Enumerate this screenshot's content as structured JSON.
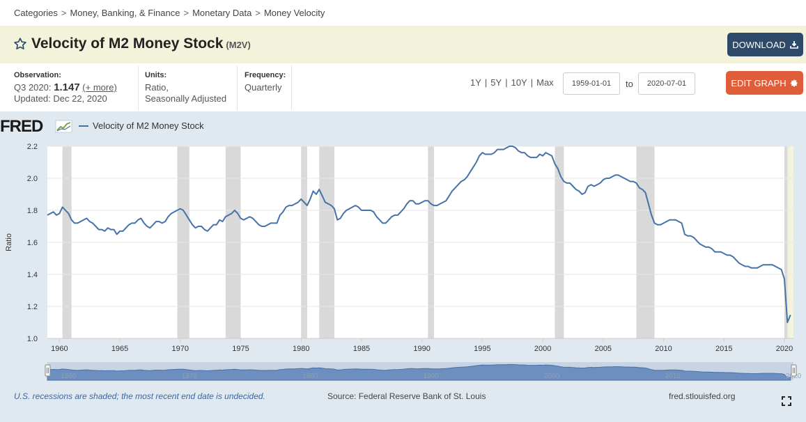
{
  "breadcrumb": {
    "items": [
      "Categories",
      "Money, Banking, & Finance",
      "Monetary Data",
      "Money Velocity"
    ],
    "separator": ">"
  },
  "header": {
    "title": "Velocity of M2 Money Stock",
    "code": "(M2V)",
    "download_label": "DOWNLOAD",
    "star_icon": "star-outline-icon",
    "download_icon": "download-icon"
  },
  "meta": {
    "observation_label": "Observation:",
    "observation_period": "Q3 2020:",
    "observation_value": "1.147",
    "observation_more": "(+ more)",
    "updated": "Updated: Dec 22, 2020",
    "units_label": "Units:",
    "units_line1": "Ratio,",
    "units_line2": "Seasonally Adjusted",
    "frequency_label": "Frequency:",
    "frequency_value": "Quarterly"
  },
  "controls": {
    "ranges": [
      "1Y",
      "5Y",
      "10Y",
      "Max"
    ],
    "start_date": "1959-01-01",
    "to_label": "to",
    "end_date": "2020-07-01",
    "edit_label": "EDIT GRAPH",
    "edit_icon": "gear-icon"
  },
  "footer": {
    "note": "U.S. recessions are shaded; the most recent end date is undecided.",
    "source": "Source: Federal Reserve Bank of St. Louis",
    "site": "fred.stlouisfed.org"
  },
  "colors": {
    "line": "#4572a7",
    "recession": "#d9d9d9",
    "download_btn": "#2d4a6b",
    "edit_btn": "#e05d3a",
    "title_band": "#f3f3dc"
  },
  "chart_data": {
    "type": "line",
    "title": "Velocity of M2 Money Stock",
    "logo_text": "FRED",
    "legend": [
      "Velocity of M2 Money Stock"
    ],
    "xlabel": "",
    "ylabel": "Ratio",
    "xlim": [
      1959.0,
      2020.75
    ],
    "ylim": [
      1.0,
      2.2
    ],
    "yticks": [
      1.0,
      1.2,
      1.4,
      1.6,
      1.8,
      2.0,
      2.2
    ],
    "xticks": [
      1960,
      1965,
      1970,
      1975,
      1980,
      1985,
      1990,
      1995,
      2000,
      2005,
      2010,
      2015,
      2020
    ],
    "nav_labels": [
      "1960",
      "1970",
      "1980",
      "1990",
      "2000",
      "2010",
      "2020"
    ],
    "recessions": [
      [
        1960.25,
        1961.0
      ],
      [
        1969.75,
        1970.75
      ],
      [
        1973.75,
        1975.0
      ],
      [
        1980.0,
        1980.5
      ],
      [
        1981.5,
        1982.75
      ],
      [
        1990.5,
        1991.0
      ],
      [
        2001.0,
        2001.75
      ],
      [
        2007.75,
        2009.25
      ],
      [
        2020.0,
        2020.5
      ]
    ],
    "series": [
      {
        "name": "Velocity of M2 Money Stock",
        "points": [
          [
            1959.0,
            1.77
          ],
          [
            1959.5,
            1.79
          ],
          [
            1959.75,
            1.77
          ],
          [
            1960.0,
            1.78
          ],
          [
            1960.25,
            1.82
          ],
          [
            1960.5,
            1.8
          ],
          [
            1960.75,
            1.78
          ],
          [
            1961.0,
            1.74
          ],
          [
            1961.25,
            1.72
          ],
          [
            1961.5,
            1.72
          ],
          [
            1961.75,
            1.73
          ],
          [
            1962.0,
            1.74
          ],
          [
            1962.25,
            1.75
          ],
          [
            1962.5,
            1.73
          ],
          [
            1962.75,
            1.72
          ],
          [
            1963.0,
            1.7
          ],
          [
            1963.25,
            1.68
          ],
          [
            1963.5,
            1.68
          ],
          [
            1963.75,
            1.67
          ],
          [
            1964.0,
            1.69
          ],
          [
            1964.25,
            1.68
          ],
          [
            1964.5,
            1.68
          ],
          [
            1964.75,
            1.65
          ],
          [
            1965.0,
            1.67
          ],
          [
            1965.25,
            1.67
          ],
          [
            1965.5,
            1.69
          ],
          [
            1965.75,
            1.71
          ],
          [
            1966.0,
            1.72
          ],
          [
            1966.25,
            1.72
          ],
          [
            1966.5,
            1.74
          ],
          [
            1966.75,
            1.75
          ],
          [
            1967.0,
            1.72
          ],
          [
            1967.25,
            1.7
          ],
          [
            1967.5,
            1.69
          ],
          [
            1967.75,
            1.71
          ],
          [
            1968.0,
            1.73
          ],
          [
            1968.25,
            1.73
          ],
          [
            1968.5,
            1.72
          ],
          [
            1968.75,
            1.73
          ],
          [
            1969.0,
            1.76
          ],
          [
            1969.25,
            1.78
          ],
          [
            1969.5,
            1.79
          ],
          [
            1969.75,
            1.8
          ],
          [
            1970.0,
            1.81
          ],
          [
            1970.25,
            1.8
          ],
          [
            1970.5,
            1.77
          ],
          [
            1970.75,
            1.74
          ],
          [
            1971.0,
            1.71
          ],
          [
            1971.25,
            1.69
          ],
          [
            1971.5,
            1.7
          ],
          [
            1971.75,
            1.7
          ],
          [
            1972.0,
            1.68
          ],
          [
            1972.25,
            1.67
          ],
          [
            1972.5,
            1.69
          ],
          [
            1972.75,
            1.71
          ],
          [
            1973.0,
            1.71
          ],
          [
            1973.25,
            1.74
          ],
          [
            1973.5,
            1.73
          ],
          [
            1973.75,
            1.76
          ],
          [
            1974.0,
            1.77
          ],
          [
            1974.25,
            1.78
          ],
          [
            1974.5,
            1.8
          ],
          [
            1974.75,
            1.78
          ],
          [
            1975.0,
            1.75
          ],
          [
            1975.25,
            1.74
          ],
          [
            1975.5,
            1.75
          ],
          [
            1975.75,
            1.76
          ],
          [
            1976.0,
            1.75
          ],
          [
            1976.25,
            1.73
          ],
          [
            1976.5,
            1.71
          ],
          [
            1976.75,
            1.7
          ],
          [
            1977.0,
            1.7
          ],
          [
            1977.25,
            1.71
          ],
          [
            1977.5,
            1.72
          ],
          [
            1977.75,
            1.72
          ],
          [
            1978.0,
            1.72
          ],
          [
            1978.25,
            1.77
          ],
          [
            1978.5,
            1.79
          ],
          [
            1978.75,
            1.82
          ],
          [
            1979.0,
            1.83
          ],
          [
            1979.25,
            1.83
          ],
          [
            1979.5,
            1.84
          ],
          [
            1979.75,
            1.85
          ],
          [
            1980.0,
            1.87
          ],
          [
            1980.25,
            1.85
          ],
          [
            1980.5,
            1.83
          ],
          [
            1980.75,
            1.87
          ],
          [
            1981.0,
            1.92
          ],
          [
            1981.25,
            1.9
          ],
          [
            1981.5,
            1.93
          ],
          [
            1981.75,
            1.89
          ],
          [
            1982.0,
            1.85
          ],
          [
            1982.25,
            1.84
          ],
          [
            1982.5,
            1.83
          ],
          [
            1982.75,
            1.81
          ],
          [
            1983.0,
            1.74
          ],
          [
            1983.25,
            1.75
          ],
          [
            1983.5,
            1.78
          ],
          [
            1983.75,
            1.8
          ],
          [
            1984.0,
            1.81
          ],
          [
            1984.25,
            1.82
          ],
          [
            1984.5,
            1.83
          ],
          [
            1984.75,
            1.82
          ],
          [
            1985.0,
            1.8
          ],
          [
            1985.25,
            1.8
          ],
          [
            1985.5,
            1.8
          ],
          [
            1985.75,
            1.8
          ],
          [
            1986.0,
            1.79
          ],
          [
            1986.25,
            1.76
          ],
          [
            1986.5,
            1.74
          ],
          [
            1986.75,
            1.72
          ],
          [
            1987.0,
            1.72
          ],
          [
            1987.25,
            1.74
          ],
          [
            1987.5,
            1.76
          ],
          [
            1987.75,
            1.77
          ],
          [
            1988.0,
            1.77
          ],
          [
            1988.25,
            1.79
          ],
          [
            1988.5,
            1.81
          ],
          [
            1988.75,
            1.84
          ],
          [
            1989.0,
            1.86
          ],
          [
            1989.25,
            1.86
          ],
          [
            1989.5,
            1.84
          ],
          [
            1989.75,
            1.84
          ],
          [
            1990.0,
            1.85
          ],
          [
            1990.25,
            1.86
          ],
          [
            1990.5,
            1.86
          ],
          [
            1990.75,
            1.84
          ],
          [
            1991.0,
            1.83
          ],
          [
            1991.25,
            1.83
          ],
          [
            1991.5,
            1.84
          ],
          [
            1991.75,
            1.85
          ],
          [
            1992.0,
            1.86
          ],
          [
            1992.25,
            1.89
          ],
          [
            1992.5,
            1.92
          ],
          [
            1992.75,
            1.94
          ],
          [
            1993.0,
            1.96
          ],
          [
            1993.25,
            1.98
          ],
          [
            1993.5,
            1.99
          ],
          [
            1993.75,
            2.01
          ],
          [
            1994.0,
            2.04
          ],
          [
            1994.25,
            2.07
          ],
          [
            1994.5,
            2.1
          ],
          [
            1994.75,
            2.14
          ],
          [
            1995.0,
            2.16
          ],
          [
            1995.25,
            2.15
          ],
          [
            1995.5,
            2.15
          ],
          [
            1995.75,
            2.15
          ],
          [
            1996.0,
            2.16
          ],
          [
            1996.25,
            2.18
          ],
          [
            1996.5,
            2.18
          ],
          [
            1996.75,
            2.18
          ],
          [
            1997.0,
            2.19
          ],
          [
            1997.25,
            2.2
          ],
          [
            1997.5,
            2.2
          ],
          [
            1997.75,
            2.19
          ],
          [
            1998.0,
            2.17
          ],
          [
            1998.25,
            2.16
          ],
          [
            1998.5,
            2.16
          ],
          [
            1998.75,
            2.14
          ],
          [
            1999.0,
            2.13
          ],
          [
            1999.25,
            2.13
          ],
          [
            1999.5,
            2.13
          ],
          [
            1999.75,
            2.15
          ],
          [
            2000.0,
            2.14
          ],
          [
            2000.25,
            2.16
          ],
          [
            2000.5,
            2.15
          ],
          [
            2000.75,
            2.14
          ],
          [
            2001.0,
            2.09
          ],
          [
            2001.25,
            2.06
          ],
          [
            2001.5,
            2.01
          ],
          [
            2001.75,
            1.98
          ],
          [
            2002.0,
            1.97
          ],
          [
            2002.25,
            1.97
          ],
          [
            2002.5,
            1.95
          ],
          [
            2002.75,
            1.93
          ],
          [
            2003.0,
            1.92
          ],
          [
            2003.25,
            1.9
          ],
          [
            2003.5,
            1.91
          ],
          [
            2003.75,
            1.95
          ],
          [
            2004.0,
            1.96
          ],
          [
            2004.25,
            1.95
          ],
          [
            2004.5,
            1.96
          ],
          [
            2004.75,
            1.97
          ],
          [
            2005.0,
            1.99
          ],
          [
            2005.25,
            2.0
          ],
          [
            2005.5,
            2.0
          ],
          [
            2005.75,
            2.01
          ],
          [
            2006.0,
            2.02
          ],
          [
            2006.25,
            2.02
          ],
          [
            2006.5,
            2.01
          ],
          [
            2006.75,
            2.0
          ],
          [
            2007.0,
            1.99
          ],
          [
            2007.25,
            1.98
          ],
          [
            2007.5,
            1.98
          ],
          [
            2007.75,
            1.97
          ],
          [
            2008.0,
            1.94
          ],
          [
            2008.25,
            1.93
          ],
          [
            2008.5,
            1.91
          ],
          [
            2008.75,
            1.84
          ],
          [
            2009.0,
            1.77
          ],
          [
            2009.25,
            1.72
          ],
          [
            2009.5,
            1.71
          ],
          [
            2009.75,
            1.71
          ],
          [
            2010.0,
            1.72
          ],
          [
            2010.25,
            1.73
          ],
          [
            2010.5,
            1.74
          ],
          [
            2010.75,
            1.74
          ],
          [
            2011.0,
            1.74
          ],
          [
            2011.25,
            1.73
          ],
          [
            2011.5,
            1.72
          ],
          [
            2011.75,
            1.65
          ],
          [
            2012.0,
            1.64
          ],
          [
            2012.25,
            1.64
          ],
          [
            2012.5,
            1.63
          ],
          [
            2012.75,
            1.61
          ],
          [
            2013.0,
            1.59
          ],
          [
            2013.25,
            1.58
          ],
          [
            2013.5,
            1.57
          ],
          [
            2013.75,
            1.57
          ],
          [
            2014.0,
            1.56
          ],
          [
            2014.25,
            1.54
          ],
          [
            2014.5,
            1.54
          ],
          [
            2014.75,
            1.54
          ],
          [
            2015.0,
            1.53
          ],
          [
            2015.25,
            1.52
          ],
          [
            2015.5,
            1.52
          ],
          [
            2015.75,
            1.51
          ],
          [
            2016.0,
            1.49
          ],
          [
            2016.25,
            1.47
          ],
          [
            2016.5,
            1.46
          ],
          [
            2016.75,
            1.45
          ],
          [
            2017.0,
            1.45
          ],
          [
            2017.25,
            1.44
          ],
          [
            2017.5,
            1.44
          ],
          [
            2017.75,
            1.44
          ],
          [
            2018.0,
            1.45
          ],
          [
            2018.25,
            1.46
          ],
          [
            2018.5,
            1.46
          ],
          [
            2018.75,
            1.46
          ],
          [
            2019.0,
            1.46
          ],
          [
            2019.25,
            1.45
          ],
          [
            2019.5,
            1.44
          ],
          [
            2019.75,
            1.43
          ],
          [
            2020.0,
            1.37
          ],
          [
            2020.25,
            1.1
          ],
          [
            2020.5,
            1.147
          ]
        ]
      }
    ]
  }
}
